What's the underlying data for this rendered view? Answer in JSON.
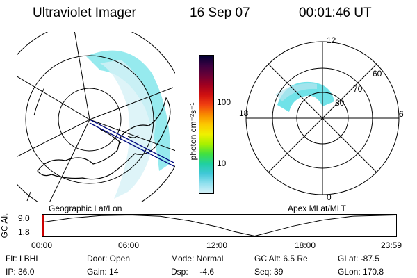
{
  "header": {
    "title": "Ultraviolet Imager",
    "date": "16 Sep 07",
    "time": "00:01:46 UT"
  },
  "colorbar": {
    "unit_label": "photon cm⁻²s⁻¹",
    "ticks": [
      "100",
      "10"
    ],
    "colors": [
      "#000033",
      "#3b0040",
      "#6a0036",
      "#a00020",
      "#d01010",
      "#f04010",
      "#f88a00",
      "#fcc800",
      "#f0f000",
      "#a8f000",
      "#40e040",
      "#20d0a0",
      "#40c8d8",
      "#90e0ee",
      "#d8f2f8"
    ]
  },
  "left_panel": {
    "caption": "Geographic Lat/Lon",
    "aurora_color": "#40d8e0",
    "land_color": "#000000"
  },
  "right_panel": {
    "caption": "Apex MLat/MLT",
    "mlt_labels": {
      "top": "12",
      "right": "6",
      "bottom": "0",
      "left": "18"
    },
    "mlat_labels": [
      "60",
      "70",
      "80"
    ]
  },
  "altitude_plot": {
    "axis_title": "GC Alt",
    "y_ticks": [
      "9.0",
      "1.8"
    ],
    "x_ticks": [
      "00:00",
      "06:00",
      "12:00",
      "18:00",
      "23:59"
    ],
    "current_marker_color": "#cc0000",
    "series": [
      {
        "t": 0,
        "alt": 6.5
      },
      {
        "t": 2,
        "alt": 8.0
      },
      {
        "t": 4,
        "alt": 8.8
      },
      {
        "t": 6,
        "alt": 9.0
      },
      {
        "t": 8,
        "alt": 8.6
      },
      {
        "t": 10,
        "alt": 7.0
      },
      {
        "t": 12,
        "alt": 4.8
      },
      {
        "t": 13,
        "alt": 3.3
      },
      {
        "t": 14.4,
        "alt": 1.8
      },
      {
        "t": 15.5,
        "alt": 3.2
      },
      {
        "t": 17,
        "alt": 5.2
      },
      {
        "t": 19,
        "alt": 7.3
      },
      {
        "t": 21,
        "alt": 8.6
      },
      {
        "t": 23.98,
        "alt": 9.0
      }
    ]
  },
  "info": {
    "filter": "Flt: LBHL",
    "door": "Door: Open",
    "mode": "Mode: Normal",
    "gc_alt": "GC Alt: 6.5 Re",
    "glat": "GLat: -87.5",
    "ip": "IP: 36.0",
    "gain": "Gain: 14",
    "dsp": "Dsp:     -4.6",
    "seq": "Seq: 39",
    "glon": "GLon: 170.8"
  }
}
